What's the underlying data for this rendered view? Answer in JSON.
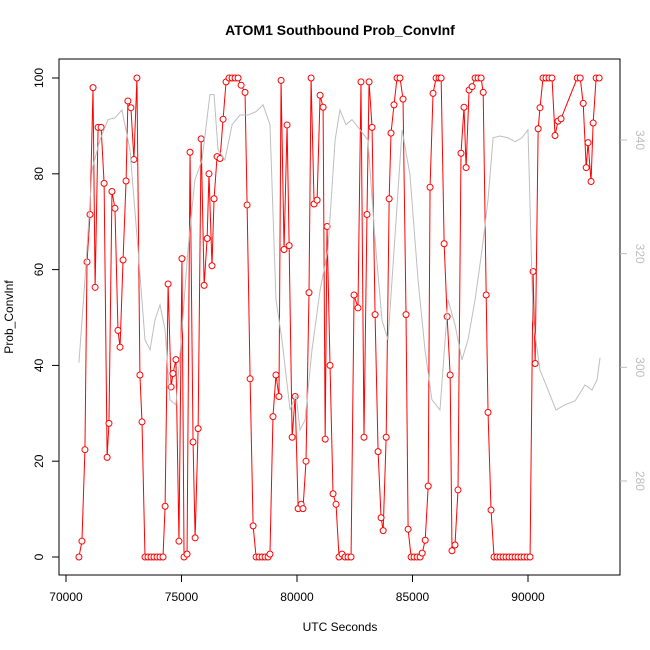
{
  "chart_data": {
    "type": "line",
    "title": "ATOM1 Southbound Prob_ConvInf",
    "xlabel": "UTC Seconds",
    "ylabel": "Prob_ConvInf",
    "xlim": [
      69697,
      93983
    ],
    "xticks": [
      70000,
      75000,
      80000,
      85000,
      90000
    ],
    "ylim": [
      -3.76,
      103.97
    ],
    "yticks": [
      0,
      20,
      40,
      60,
      80,
      100
    ],
    "y2lim": [
      263.45,
      354.26
    ],
    "y2ticks": [
      280,
      300,
      320,
      340
    ],
    "y2color": "#bebebe",
    "series": [
      {
        "color": "#ff0000",
        "marker": "circle",
        "x": [
          70560,
          70690,
          70820,
          70910,
          71040,
          71170,
          71260,
          71390,
          71520,
          71650,
          71780,
          71860,
          71990,
          72120,
          72250,
          72340,
          72470,
          72600,
          72680,
          72810,
          72940,
          73070,
          73200,
          73290,
          73420,
          73550,
          73680,
          73810,
          73940,
          74070,
          74200,
          74290,
          74420,
          74550,
          74630,
          74760,
          74890,
          75020,
          75110,
          75240,
          75370,
          75500,
          75590,
          75720,
          75850,
          75980,
          76110,
          76190,
          76320,
          76410,
          76540,
          76670,
          76800,
          76930,
          77060,
          77190,
          77320,
          77450,
          77580,
          77750,
          77840,
          77970,
          78100,
          78230,
          78360,
          78490,
          78620,
          78750,
          78830,
          78960,
          79090,
          79220,
          79310,
          79440,
          79570,
          79660,
          79790,
          79920,
          80050,
          80180,
          80260,
          80390,
          80520,
          80610,
          80740,
          80870,
          81000,
          81130,
          81220,
          81300,
          81430,
          81560,
          81690,
          81820,
          81950,
          82080,
          82210,
          82340,
          82470,
          82640,
          82770,
          82900,
          83030,
          83120,
          83250,
          83380,
          83510,
          83640,
          83730,
          83860,
          83990,
          84070,
          84200,
          84330,
          84460,
          84590,
          84720,
          84810,
          84940,
          85070,
          85200,
          85330,
          85420,
          85550,
          85680,
          85760,
          85890,
          86020,
          86150,
          86240,
          86370,
          86500,
          86630,
          86710,
          86840,
          86970,
          87100,
          87230,
          87320,
          87450,
          87580,
          87710,
          87840,
          87970,
          88060,
          88190,
          88270,
          88400,
          88530,
          88660,
          88790,
          88920,
          89050,
          89180,
          89310,
          89440,
          89570,
          89700,
          89830,
          89960,
          90090,
          90220,
          90310,
          90440,
          90520,
          90650,
          90780,
          90910,
          91040,
          91170,
          91300,
          91430,
          92130,
          92260,
          92390,
          92520,
          92600,
          92730,
          92820,
          92950,
          93080
        ],
        "values": [
          0,
          3.3,
          22.4,
          61.6,
          71.5,
          98,
          56.3,
          89.7,
          89.7,
          78,
          20.8,
          27.9,
          76.3,
          72.8,
          47.3,
          43.8,
          62,
          78.5,
          95.2,
          93.8,
          83,
          100,
          38,
          28.2,
          0,
          0,
          0,
          0,
          0,
          0,
          0,
          10.6,
          57,
          35.5,
          38.3,
          41.2,
          3.3,
          62.3,
          0,
          0.6,
          84.5,
          24,
          4,
          26.8,
          87.3,
          56.7,
          66.5,
          80,
          60.8,
          74.8,
          83.6,
          83.2,
          91.4,
          99.2,
          100,
          100,
          100,
          100,
          98.5,
          97,
          73.5,
          37.2,
          6.5,
          0,
          0,
          0,
          0,
          0,
          0.6,
          29.3,
          38,
          33.5,
          99.5,
          64.2,
          90.2,
          65,
          25,
          33.5,
          10.1,
          11,
          10.1,
          20,
          55.2,
          100,
          73.7,
          74.5,
          96.4,
          93.9,
          24.6,
          69,
          40,
          13.2,
          11,
          0,
          0.6,
          0,
          0,
          0,
          54.7,
          52,
          99.2,
          25,
          71.5,
          99.2,
          89.7,
          50.6,
          22,
          8.2,
          5.5,
          25,
          74.8,
          88.5,
          94.4,
          100,
          100,
          95.6,
          50.6,
          5.8,
          0,
          0,
          0,
          0,
          0.8,
          3.5,
          14.8,
          77.2,
          96.8,
          100,
          100,
          100,
          65.4,
          50.2,
          38,
          1.3,
          2.5,
          14,
          84.3,
          93.9,
          81.3,
          97.5,
          98.2,
          100,
          100,
          100,
          97,
          54.7,
          30.2,
          9.8,
          0,
          0,
          0,
          0,
          0,
          0,
          0,
          0,
          0,
          0,
          0,
          0,
          0,
          59.6,
          40.4,
          89.4,
          93.8,
          100,
          100,
          100,
          100,
          88,
          91,
          91.5,
          100,
          100,
          94.7,
          81.3,
          86.5,
          78.4,
          90.6,
          100,
          100
        ]
      },
      {
        "color": "#bebebe",
        "axis": "y2",
        "x": [
          70560,
          70820,
          71130,
          71470,
          71820,
          72120,
          72420,
          72770,
          73120,
          73420,
          73640,
          73850,
          74070,
          74290,
          74500,
          74760,
          75020,
          75280,
          75580,
          75890,
          76230,
          76410,
          76580,
          76880,
          77190,
          77530,
          77880,
          78230,
          78530,
          78830,
          79090,
          79350,
          79700,
          79960,
          80130,
          80350,
          80650,
          81000,
          81340,
          81650,
          81860,
          82120,
          82380,
          82730,
          83070,
          83380,
          83680,
          83940,
          84290,
          84550,
          84890,
          85240,
          85540,
          85840,
          86190,
          86540,
          86840,
          87140,
          87400,
          87710,
          88010,
          88270,
          88490,
          88790,
          89130,
          89440,
          89740,
          90000,
          90220,
          90520,
          90870,
          91210,
          91600,
          92040,
          92470,
          92770,
          92990,
          93120
        ],
        "values": [
          300.8,
          315.4,
          334.8,
          340.0,
          343.6,
          343.9,
          345.3,
          338.3,
          320.7,
          304.8,
          303.1,
          308.3,
          311.0,
          306.6,
          294.3,
          293.4,
          306.6,
          320.7,
          333.0,
          336.5,
          348.0,
          348.0,
          338.3,
          336.5,
          342.7,
          344.4,
          344.4,
          345.0,
          346.2,
          342.7,
          311.9,
          304.8,
          292.5,
          295.1,
          289.0,
          290.7,
          303.1,
          313.6,
          320.7,
          340.0,
          345.3,
          342.7,
          343.6,
          341.8,
          340.0,
          322.4,
          308.3,
          304.8,
          326.0,
          341.8,
          333.9,
          315.4,
          303.1,
          294.3,
          292.5,
          311.9,
          307.5,
          301.3,
          304.8,
          311.9,
          320.7,
          329.5,
          340.4,
          340.7,
          340.4,
          339.7,
          340.4,
          341.8,
          308.3,
          299.5,
          296.0,
          292.5,
          293.4,
          294.1,
          296.9,
          296.0,
          297.8,
          301.7
        ]
      }
    ]
  }
}
